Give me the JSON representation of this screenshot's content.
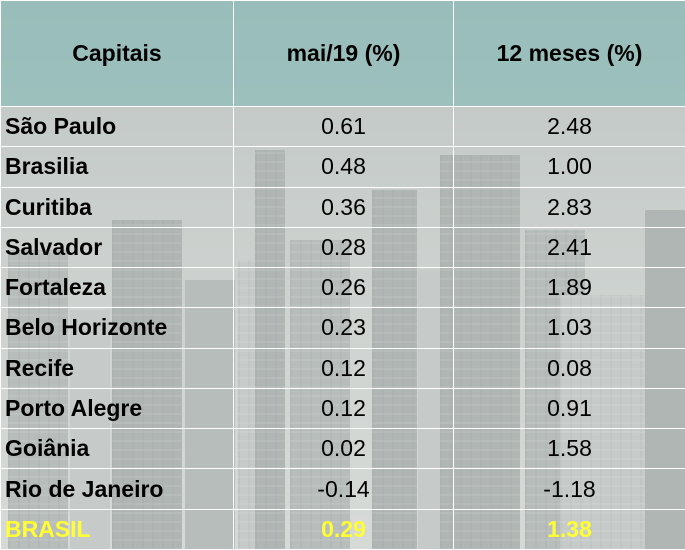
{
  "table": {
    "headers": [
      "Capitais",
      "mai/19 (%)",
      "12 meses (%)"
    ],
    "rows": [
      {
        "city": "São Paulo",
        "month": "0.61",
        "year": "2.48"
      },
      {
        "city": "Brasilia",
        "month": "0.48",
        "year": "1.00"
      },
      {
        "city": "Curitiba",
        "month": "0.36",
        "year": "2.83"
      },
      {
        "city": "Salvador",
        "month": "0.28",
        "year": "2.41"
      },
      {
        "city": "Fortaleza",
        "month": "0.26",
        "year": "1.89"
      },
      {
        "city": "Belo Horizonte",
        "month": "0.23",
        "year": "1.03"
      },
      {
        "city": "Recife",
        "month": "0.12",
        "year": "0.08"
      },
      {
        "city": "Porto Alegre",
        "month": "0.12",
        "year": "0.91"
      },
      {
        "city": "Goiânia",
        "month": "0.02",
        "year": "1.58"
      },
      {
        "city": "Rio de Janeiro",
        "month": "-0.14",
        "year": "-1.18"
      }
    ],
    "total": {
      "city": "BRASIL",
      "month": "0.29",
      "year": "1.38"
    }
  },
  "colors": {
    "header_bg": "#9cccc8",
    "total_text": "#ffff33",
    "border": "#ffffff"
  }
}
